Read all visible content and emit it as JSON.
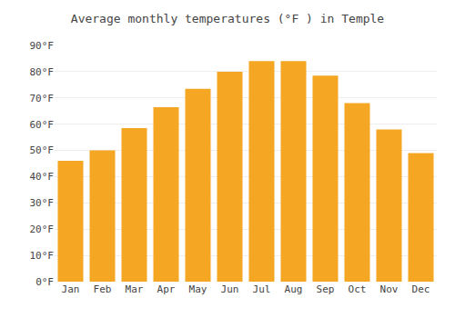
{
  "chart_data": {
    "type": "bar",
    "title": "Average monthly temperatures (°F ) in Temple",
    "categories": [
      "Jan",
      "Feb",
      "Mar",
      "Apr",
      "May",
      "Jun",
      "Jul",
      "Aug",
      "Sep",
      "Oct",
      "Nov",
      "Dec"
    ],
    "values": [
      46,
      50,
      58.5,
      66.5,
      73.5,
      80,
      84,
      84,
      78.5,
      68,
      58,
      49
    ],
    "color": "#F5A623",
    "ylim": [
      0,
      90
    ],
    "yticks": [
      {
        "value": 0,
        "label": "0°F"
      },
      {
        "value": 10,
        "label": "10°F"
      },
      {
        "value": 20,
        "label": "20°F"
      },
      {
        "value": 30,
        "label": "30°F"
      },
      {
        "value": 40,
        "label": "40°F"
      },
      {
        "value": 50,
        "label": "50°F"
      },
      {
        "value": 60,
        "label": "60°F"
      },
      {
        "value": 70,
        "label": "70°F"
      },
      {
        "value": 80,
        "label": "80°F"
      },
      {
        "value": 90,
        "label": "90°F"
      }
    ],
    "grid": true
  }
}
